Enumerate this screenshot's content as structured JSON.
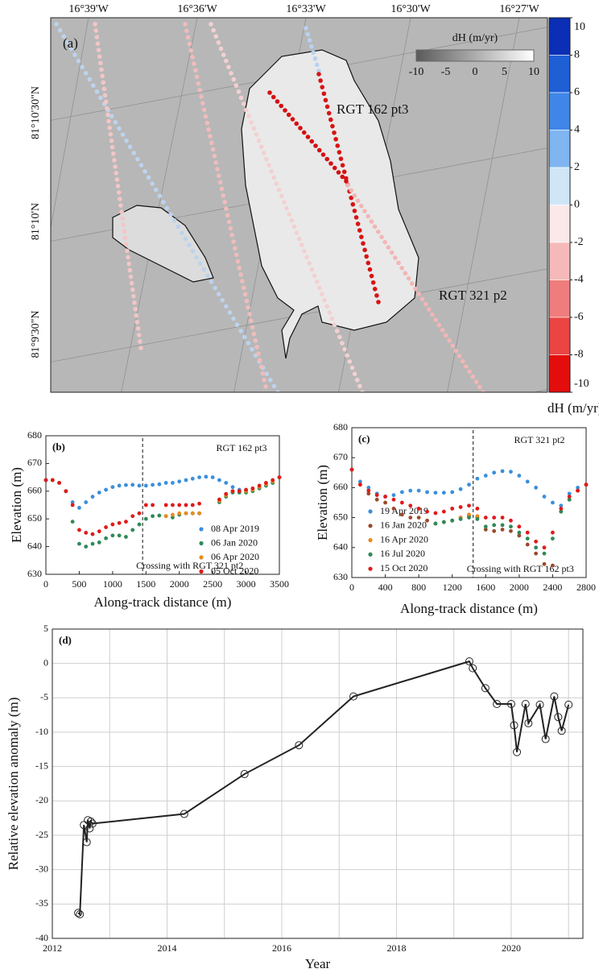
{
  "map": {
    "panel_label": "(a)",
    "lon_ticks": [
      "16°39'W",
      "16°36'W",
      "16°33'W",
      "16°30'W",
      "16°27'W"
    ],
    "lat_ticks": [
      "81°10'30\"N",
      "81°10'N",
      "81°9'30\"N"
    ],
    "labels": [
      "RGT 162 pt3",
      "RGT 321 p2"
    ],
    "inset_colorbar": {
      "title": "dH (m/yr)",
      "ticks": [
        -10,
        -5,
        0,
        5,
        10
      ],
      "colors": [
        "#5a5a5a",
        "#ffffff"
      ]
    },
    "colorbar": {
      "title": "dH (m/yr)",
      "ticks": [
        10,
        8,
        6,
        4,
        2,
        0,
        -2,
        -4,
        -6,
        -8,
        -10
      ],
      "colors": [
        "#0a2fb5",
        "#1f5fd6",
        "#3f86e8",
        "#7fb5f0",
        "#cfe6f8",
        "#fbe9e9",
        "#f6b9b9",
        "#f07d7d",
        "#ea4444",
        "#e40d0d"
      ]
    }
  },
  "chart_data": [
    {
      "type": "scatter",
      "panel_label": "(b)",
      "annotation": "RGT 162 pt3",
      "xlabel": "Along-track distance (m)",
      "ylabel": "Elevation (m)",
      "xlim": [
        0,
        3500
      ],
      "ylim": [
        630,
        680
      ],
      "xticks": [
        0,
        500,
        1000,
        1500,
        2000,
        2500,
        3000,
        3500
      ],
      "yticks": [
        630,
        640,
        650,
        660,
        670,
        680
      ],
      "crossing": {
        "x": 1450,
        "label": "Crossing with RGT 321 pt2"
      },
      "x": [
        0,
        100,
        200,
        300,
        400,
        500,
        600,
        700,
        800,
        900,
        1000,
        1100,
        1200,
        1300,
        1400,
        1500,
        1600,
        1700,
        1800,
        1900,
        2000,
        2100,
        2200,
        2300,
        2400,
        2500,
        2600,
        2700,
        2800,
        2900,
        3000,
        3100,
        3200,
        3300,
        3400,
        3500
      ],
      "series": [
        {
          "name": "08 Apr 2019",
          "color": "#3a8fdc",
          "values": [
            664,
            664,
            663,
            660,
            656,
            654,
            656,
            658,
            659.5,
            660.5,
            661.5,
            662,
            662.2,
            662.3,
            662,
            662,
            662.3,
            662.5,
            663,
            663,
            663.5,
            664,
            664.5,
            665,
            665.2,
            665,
            664,
            663,
            661.5,
            660.5,
            660.3,
            660.5,
            661,
            662,
            663,
            665
          ]
        },
        {
          "name": "06 Jan 2020",
          "color": "#2e8a57",
          "values": [
            664,
            664,
            663,
            660,
            649,
            641,
            640,
            641,
            641.5,
            643,
            644,
            644,
            643.5,
            646,
            648,
            650,
            651,
            651.2,
            651,
            650.5,
            651.5,
            652,
            652,
            652,
            null,
            null,
            656,
            658,
            659.5,
            659.5,
            659.5,
            660,
            661,
            662,
            663,
            665
          ]
        },
        {
          "name": "06 Apr 2020",
          "color": "#e88a1d",
          "values": [
            null,
            null,
            null,
            null,
            null,
            null,
            null,
            null,
            null,
            null,
            null,
            null,
            null,
            null,
            null,
            null,
            null,
            null,
            651,
            651.5,
            652,
            652,
            652,
            652,
            null,
            null,
            656.5,
            658.5,
            660,
            660,
            660,
            660.5,
            661.5,
            662.5,
            663.5,
            665
          ]
        },
        {
          "name": "05 Oct 2020",
          "color": "#e01a1a",
          "values": [
            664,
            664,
            663,
            660,
            655,
            646,
            645,
            644.5,
            645.5,
            647,
            648,
            648.5,
            649,
            651,
            652,
            655,
            655,
            null,
            655,
            655,
            655,
            655,
            655,
            655.5,
            null,
            null,
            657,
            659,
            660,
            660,
            660.5,
            661,
            662,
            663,
            664,
            665
          ]
        }
      ]
    },
    {
      "type": "scatter",
      "panel_label": "(c)",
      "annotation": "RGT 321 pt2",
      "xlabel": "Along-track distance (m)",
      "ylabel": "Elevation (m)",
      "xlim": [
        0,
        2800
      ],
      "ylim": [
        630,
        680
      ],
      "xticks": [
        0,
        400,
        800,
        1200,
        1600,
        2000,
        2400,
        2800
      ],
      "yticks": [
        630,
        640,
        650,
        660,
        670,
        680
      ],
      "crossing": {
        "x": 1450,
        "label": "Crossing with RGT 162 pt3"
      },
      "x": [
        0,
        100,
        200,
        300,
        400,
        500,
        600,
        700,
        800,
        900,
        1000,
        1100,
        1200,
        1300,
        1400,
        1500,
        1600,
        1700,
        1800,
        1900,
        2000,
        2100,
        2200,
        2300,
        2400,
        2500,
        2600,
        2700,
        2800
      ],
      "series": [
        {
          "name": "19 Apr 2019",
          "color": "#3a8fdc",
          "values": [
            666,
            662,
            660,
            658,
            657,
            657.5,
            658.5,
            659,
            659,
            658.5,
            658.3,
            658.3,
            658.5,
            659.5,
            661,
            663,
            664,
            665,
            665.5,
            665.3,
            664,
            662,
            660,
            657,
            655,
            654,
            658,
            660,
            661
          ]
        },
        {
          "name": "16 Jan 2020",
          "color": "#9b4a2a",
          "values": [
            666,
            661,
            658,
            656,
            655,
            653,
            651,
            650,
            650,
            649,
            648,
            648.5,
            649,
            650,
            650.5,
            650,
            646,
            645.5,
            646,
            645.5,
            644,
            641,
            638,
            634.5,
            634,
            652,
            656,
            659,
            661
          ]
        },
        {
          "name": "16 Apr 2020",
          "color": "#e88a1d",
          "values": [
            null,
            null,
            null,
            null,
            null,
            null,
            null,
            null,
            null,
            null,
            null,
            648.5,
            649,
            650,
            651,
            650.5,
            null,
            null,
            null,
            null,
            null,
            null,
            null,
            null,
            null,
            null,
            null,
            null,
            null
          ]
        },
        {
          "name": "16 Jul 2020",
          "color": "#2e8a57",
          "values": [
            null,
            null,
            null,
            null,
            null,
            null,
            null,
            null,
            null,
            null,
            648,
            648.5,
            649,
            649.5,
            650,
            649.5,
            647,
            647.5,
            647.5,
            647,
            645,
            643,
            640,
            638,
            643,
            652,
            656,
            null,
            null
          ]
        },
        {
          "name": "15 Oct 2020",
          "color": "#e01a1a",
          "values": [
            666,
            661,
            659,
            657.5,
            657,
            656,
            655,
            654,
            653,
            652,
            651.5,
            652,
            653,
            653.5,
            654,
            653,
            650,
            650,
            650,
            649,
            647,
            645,
            642,
            640,
            645,
            653,
            657,
            659,
            661
          ]
        }
      ]
    },
    {
      "type": "line",
      "panel_label": "(d)",
      "grid": true,
      "xlabel": "Year",
      "ylabel": "Relative elevation anomaly (m)",
      "xlim": [
        2012,
        2021.25
      ],
      "ylim": [
        -40,
        5
      ],
      "xticks": [
        2012,
        2014,
        2016,
        2018,
        2020
      ],
      "x_minor_ticks": [
        2013,
        2015,
        2017,
        2019,
        2021
      ],
      "yticks": [
        5,
        0,
        -5,
        -10,
        -15,
        -20,
        -25,
        -30,
        -35,
        -40
      ],
      "color": "#222222",
      "x": [
        2012.45,
        2012.48,
        2012.55,
        2012.6,
        2012.62,
        2012.65,
        2012.67,
        2012.7,
        2014.3,
        2015.35,
        2016.3,
        2017.25,
        2019.27,
        2019.33,
        2019.55,
        2019.75,
        2020.0,
        2020.05,
        2020.1,
        2020.25,
        2020.3,
        2020.5,
        2020.6,
        2020.75,
        2020.82,
        2020.88,
        2021.0
      ],
      "values": [
        -36.3,
        -36.5,
        -23.5,
        -26,
        -22.8,
        -24,
        -23,
        -23.3,
        -21.9,
        -16.1,
        -11.9,
        -4.8,
        0.3,
        -0.7,
        -3.6,
        -5.9,
        -5.9,
        -9,
        -12.9,
        -5.9,
        -8.7,
        -6,
        -11,
        -4.8,
        -7.8,
        -9.8,
        -6
      ]
    }
  ]
}
